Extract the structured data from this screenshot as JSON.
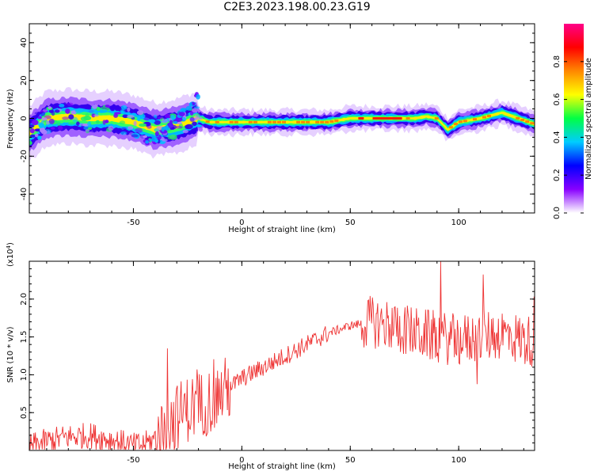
{
  "figure": {
    "title": "C2E3.2023.198.00.23.G19"
  },
  "chart_data": [
    {
      "type": "heatmap",
      "xlabel": "Height of straight line (km)",
      "ylabel": "Frequency (Hz)",
      "xlim": [
        -98,
        135
      ],
      "ylim": [
        -50,
        50
      ],
      "xticks": [
        -50,
        0,
        50,
        100
      ],
      "yticks": [
        -40,
        -20,
        0,
        20,
        40
      ],
      "colorbar": {
        "label": "Normalized spectral amplitude",
        "range": [
          0.0,
          1.0
        ],
        "ticks": [
          "0.0",
          "0.2",
          "0.4",
          "0.6",
          "0.8"
        ],
        "colors": [
          "#ffffff",
          "#8800ff",
          "#0000ff",
          "#00ccff",
          "#00ff44",
          "#ffff00",
          "#ff8800",
          "#ff0000",
          "#ff0088"
        ]
      },
      "ridge": {
        "x": [
          -98,
          -90,
          -80,
          -70,
          -60,
          -50,
          -40,
          -35,
          -30,
          -25,
          -20,
          -15,
          -10,
          -5,
          0,
          10,
          20,
          30,
          40,
          50,
          60,
          70,
          80,
          85,
          90,
          95,
          100,
          110,
          120,
          130,
          135
        ],
        "y": [
          -8,
          0,
          1,
          0,
          0,
          -2,
          -6,
          -5,
          -4,
          -2,
          0,
          -2,
          -2,
          -2,
          -2,
          -2,
          -2,
          -2,
          -2,
          0,
          0,
          0,
          0,
          1,
          0,
          -6,
          -2,
          0,
          3,
          -1,
          -3
        ]
      },
      "branch": {
        "x": [
          -45,
          -40,
          -35,
          -30,
          -25,
          -20
        ],
        "y": [
          -14,
          -10,
          -6,
          0,
          5,
          13
        ]
      }
    },
    {
      "type": "line",
      "xlabel": "Height of straight line (km)",
      "ylabel": "SNR (10 * v/v)",
      "yscale_note": "(x10",
      "yscale_exp": "4",
      "yscale_close": ")",
      "xlim": [
        -98,
        135
      ],
      "ylim": [
        0,
        2.5
      ],
      "xticks": [
        -50,
        0,
        50,
        100
      ],
      "yticks": [
        0.5,
        1.0,
        1.5,
        2.0
      ],
      "color": "#ee3333",
      "series": [
        {
          "x": [
            -98,
            -90,
            -80,
            -70,
            -60,
            -50,
            -45,
            -40,
            -35,
            -30,
            -25,
            -20,
            -15,
            -10,
            -5,
            0,
            10,
            20,
            30,
            40,
            50,
            60,
            70,
            80,
            90,
            100,
            110,
            120,
            130,
            135
          ],
          "y": [
            0.05,
            0.12,
            0.18,
            0.2,
            0.14,
            0.06,
            0.08,
            0.15,
            0.3,
            0.45,
            0.55,
            0.6,
            0.65,
            0.75,
            0.85,
            0.95,
            1.1,
            1.25,
            1.4,
            1.55,
            1.65,
            1.7,
            1.65,
            1.55,
            1.5,
            1.45,
            1.5,
            1.55,
            1.45,
            1.45
          ]
        }
      ]
    }
  ]
}
